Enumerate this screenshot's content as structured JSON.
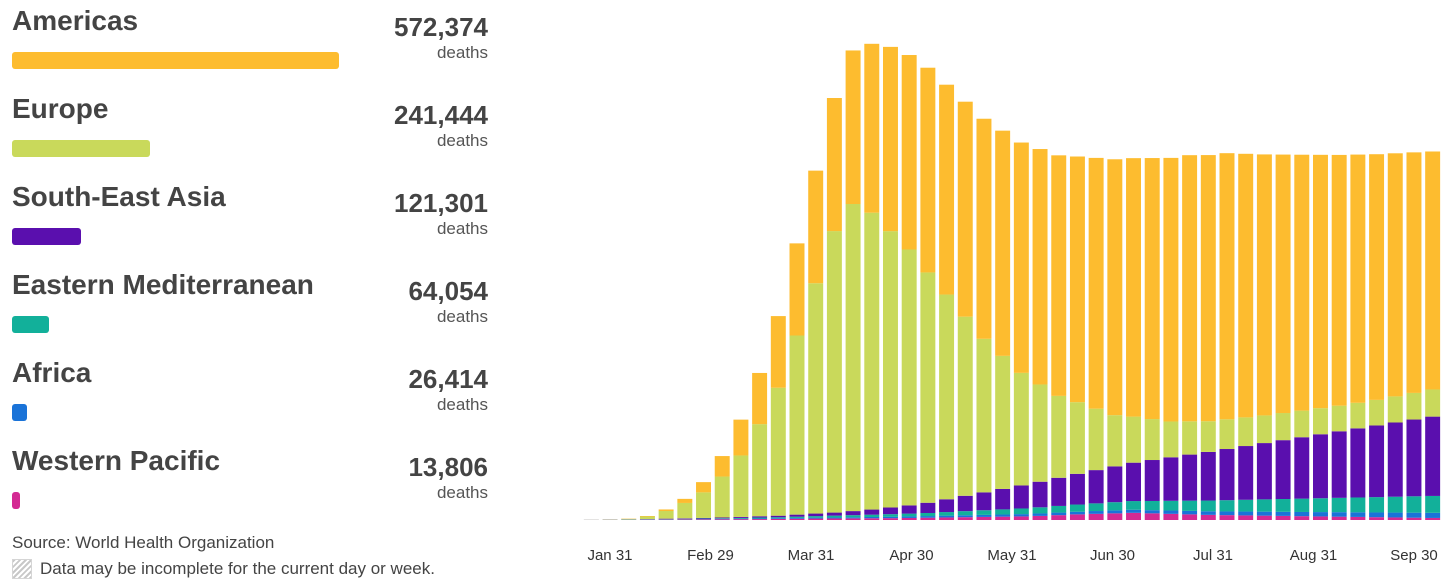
{
  "legend": {
    "regions": [
      {
        "name": "Americas",
        "value": "572,374",
        "unit": "deaths",
        "color": "#FDBC2F",
        "share": 1.0
      },
      {
        "name": "Europe",
        "value": "241,444",
        "unit": "deaths",
        "color": "#C9D95B",
        "share": 0.4218
      },
      {
        "name": "South-East Asia",
        "value": "121,301",
        "unit": "deaths",
        "color": "#5A0FAE",
        "share": 0.2119
      },
      {
        "name": "Eastern Mediterranean",
        "value": "64,054",
        "unit": "deaths",
        "color": "#12B09A",
        "share": 0.1119
      },
      {
        "name": "Africa",
        "value": "26,414",
        "unit": "deaths",
        "color": "#1A73D8",
        "share": 0.0461
      },
      {
        "name": "Western Pacific",
        "value": "13,806",
        "unit": "deaths",
        "color": "#D42A93",
        "share": 0.0241
      }
    ],
    "source": "Source: World Health Organization",
    "note": "Data may be incomplete for the current day or week."
  },
  "chart_data": {
    "type": "bar",
    "stacked": true,
    "x_ticks": [
      "Jan 31",
      "Feb 29",
      "Mar 31",
      "Apr 30",
      "May 31",
      "Jun 30",
      "Jul 31",
      "Aug 31",
      "Sep 30"
    ],
    "x_start": "Jan 3",
    "x_end": "Oct 8",
    "series": [
      {
        "name": "Western Pacific",
        "color": "#D42A93"
      },
      {
        "name": "Africa",
        "color": "#1A73D8"
      },
      {
        "name": "Eastern Mediterranean",
        "color": "#12B09A"
      },
      {
        "name": "South-East Asia",
        "color": "#5A0FAE"
      },
      {
        "name": "Europe",
        "color": "#C9D95B"
      },
      {
        "name": "Americas",
        "color": "#FDBC2F"
      }
    ],
    "daily_values": [
      [
        1,
        2,
        3,
        5,
        8,
        10,
        12,
        14,
        16,
        18,
        20,
        24,
        28,
        30,
        32,
        34,
        36,
        40,
        45,
        50,
        55,
        60,
        65,
        70,
        80,
        95,
        110,
        120,
        130,
        140,
        130,
        120,
        110,
        100,
        95,
        90,
        85,
        80,
        75,
        70,
        65,
        60,
        55,
        50,
        45,
        40
      ],
      [
        1,
        2,
        3,
        3,
        4,
        5,
        6,
        8,
        10,
        12,
        14,
        16,
        18,
        20,
        22,
        25,
        28,
        30,
        32,
        35,
        38,
        40,
        42,
        45,
        48,
        50,
        52,
        55,
        58,
        60,
        62,
        65,
        68,
        70,
        72,
        75,
        78,
        80,
        82,
        85,
        88,
        90,
        92,
        95,
        98,
        100
      ],
      [
        1,
        2,
        3,
        5,
        6,
        8,
        10,
        12,
        15,
        18,
        20,
        25,
        30,
        35,
        40,
        45,
        50,
        55,
        60,
        70,
        80,
        90,
        100,
        110,
        120,
        130,
        140,
        150,
        160,
        170,
        180,
        190,
        200,
        210,
        220,
        230,
        240,
        250,
        260,
        270,
        280,
        290,
        300,
        310,
        320,
        330
      ],
      [
        1,
        2,
        3,
        5,
        8,
        10,
        12,
        15,
        20,
        25,
        30,
        40,
        50,
        60,
        80,
        100,
        130,
        160,
        200,
        250,
        300,
        350,
        400,
        450,
        500,
        550,
        600,
        650,
        700,
        750,
        800,
        850,
        900,
        950,
        1000,
        1050,
        1100,
        1150,
        1200,
        1250,
        1300,
        1350,
        1400,
        1450,
        1500,
        1550
      ],
      [
        1,
        3,
        10,
        50,
        150,
        300,
        500,
        800,
        1200,
        1800,
        2500,
        3500,
        4500,
        5500,
        6000,
        5800,
        5400,
        5000,
        4500,
        4000,
        3500,
        3000,
        2600,
        2200,
        1900,
        1600,
        1400,
        1200,
        1000,
        900,
        800,
        700,
        650,
        600,
        580,
        560,
        540,
        530,
        520,
        510,
        500,
        500,
        500,
        510,
        520,
        530
      ],
      [
        1,
        2,
        5,
        10,
        30,
        80,
        200,
        400,
        700,
        1000,
        1400,
        1800,
        2200,
        2600,
        3000,
        3300,
        3600,
        3800,
        4000,
        4100,
        4200,
        4300,
        4400,
        4500,
        4600,
        4700,
        4800,
        4900,
        5000,
        5050,
        5100,
        5150,
        5200,
        5200,
        5200,
        5150,
        5100,
        5050,
        5000,
        4950,
        4900,
        4850,
        4800,
        4750,
        4700,
        4650
      ]
    ]
  }
}
